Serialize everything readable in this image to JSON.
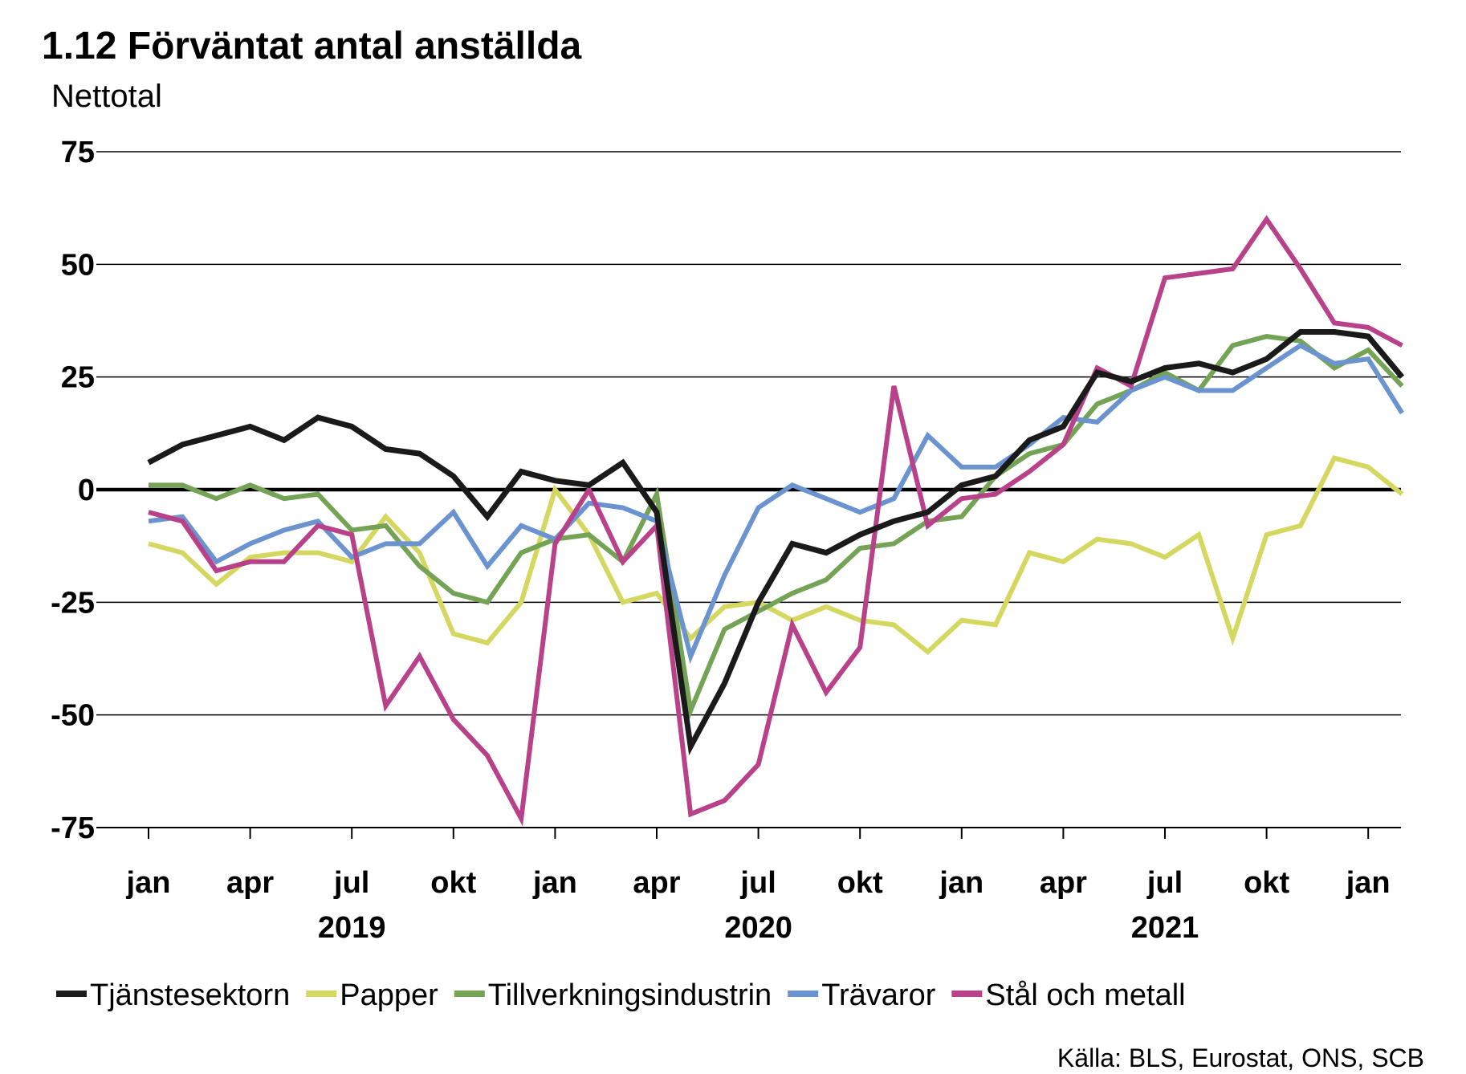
{
  "chart_data": {
    "type": "line",
    "title": "1.12 Förväntat antal anställda",
    "subtitle": "Nettotal",
    "source": "Källa: BLS, Eurostat, ONS, SCB",
    "ylim": [
      -75,
      75
    ],
    "yticks": [
      75,
      50,
      25,
      0,
      -25,
      -50,
      -75
    ],
    "ytick_labels": [
      "75",
      "50",
      "25",
      "0",
      "-25",
      "-50",
      "-75"
    ],
    "grid": "horizontal",
    "legend_position": "bottom",
    "x": [
      "2019-01",
      "2019-02",
      "2019-03",
      "2019-04",
      "2019-05",
      "2019-06",
      "2019-07",
      "2019-08",
      "2019-09",
      "2019-10",
      "2019-11",
      "2019-12",
      "2020-01",
      "2020-02",
      "2020-03",
      "2020-04",
      "2020-05",
      "2020-06",
      "2020-07",
      "2020-08",
      "2020-09",
      "2020-10",
      "2020-11",
      "2020-12",
      "2021-01",
      "2021-02",
      "2021-03",
      "2021-04",
      "2021-05",
      "2021-06",
      "2021-07",
      "2021-08",
      "2021-09",
      "2021-10",
      "2021-11",
      "2021-12",
      "2022-01",
      "2022-02"
    ],
    "xtick_labels": [
      {
        "month": "2019-01",
        "label": "jan"
      },
      {
        "month": "2019-04",
        "label": "apr"
      },
      {
        "month": "2019-07",
        "label": "jul"
      },
      {
        "month": "2019-10",
        "label": "okt"
      },
      {
        "month": "2020-01",
        "label": "jan"
      },
      {
        "month": "2020-04",
        "label": "apr"
      },
      {
        "month": "2020-07",
        "label": "jul"
      },
      {
        "month": "2020-10",
        "label": "okt"
      },
      {
        "month": "2021-01",
        "label": "jan"
      },
      {
        "month": "2021-04",
        "label": "apr"
      },
      {
        "month": "2021-07",
        "label": "jul"
      },
      {
        "month": "2021-10",
        "label": "okt"
      },
      {
        "month": "2022-01",
        "label": "jan"
      }
    ],
    "year_labels": [
      {
        "month": "2019-07",
        "label": "2019"
      },
      {
        "month": "2020-07",
        "label": "2020"
      },
      {
        "month": "2021-07",
        "label": "2021"
      }
    ],
    "series": [
      {
        "name": "Tjänstesektorn",
        "color": "#1a1a1a",
        "start": "2019-01",
        "values": [
          6,
          10,
          12,
          14,
          11,
          16,
          14,
          9,
          8,
          3,
          -6,
          4,
          2,
          1,
          6,
          -5,
          -57,
          -43,
          -25,
          -12,
          -14,
          -10,
          -7,
          -5,
          1,
          3,
          11,
          14,
          26,
          24,
          27,
          28,
          26,
          29,
          35,
          35,
          34,
          25
        ]
      },
      {
        "name": "Papper",
        "color": "#d4d860",
        "start": "2019-01",
        "values": [
          -12,
          -14,
          -21,
          -15,
          -14,
          -14,
          -16,
          -6,
          -14,
          -32,
          -34,
          -25,
          0,
          -10,
          -25,
          -23,
          -33,
          -26,
          -25,
          -29,
          -26,
          -29,
          -30,
          -36,
          -29,
          -30,
          -14,
          -16,
          -11,
          -12,
          -15,
          -10,
          -33,
          -10,
          -8,
          7,
          5,
          -1
        ]
      },
      {
        "name": "Tillverkningsindustrin",
        "color": "#74a356",
        "start": "2019-01",
        "values": [
          1,
          1,
          -2,
          1,
          -2,
          -1,
          -9,
          -8,
          -17,
          -23,
          -25,
          -14,
          -11,
          -10,
          -16,
          -1,
          -49,
          -31,
          -27,
          -23,
          -20,
          -13,
          -12,
          -7,
          -6,
          3,
          8,
          10,
          19,
          22,
          26,
          22,
          32,
          34,
          33,
          27,
          31,
          23
        ]
      },
      {
        "name": "Trävaror",
        "color": "#6a93cf",
        "start": "2019-01",
        "values": [
          -7,
          -6,
          -16,
          -12,
          -9,
          -7,
          -15,
          -12,
          -12,
          -5,
          -17,
          -8,
          -11,
          -3,
          -4,
          -7,
          -37,
          -19,
          -4,
          1,
          -2,
          -5,
          -2,
          12,
          5,
          5,
          10,
          16,
          15,
          22,
          25,
          22,
          22,
          27,
          32,
          28,
          29,
          17
        ]
      },
      {
        "name": "Stål och metall",
        "color": "#b8418a",
        "start": "2019-01",
        "values": [
          -5,
          -7,
          -18,
          -16,
          -16,
          -8,
          -10,
          -48,
          -37,
          -51,
          -59,
          -73,
          -12,
          0,
          -16,
          -8,
          -72,
          -69,
          -61,
          -30,
          -45,
          -35,
          23,
          -8,
          -2,
          -1,
          4,
          10,
          27,
          23,
          47,
          48,
          49,
          60,
          49,
          37,
          36,
          32
        ]
      }
    ]
  }
}
